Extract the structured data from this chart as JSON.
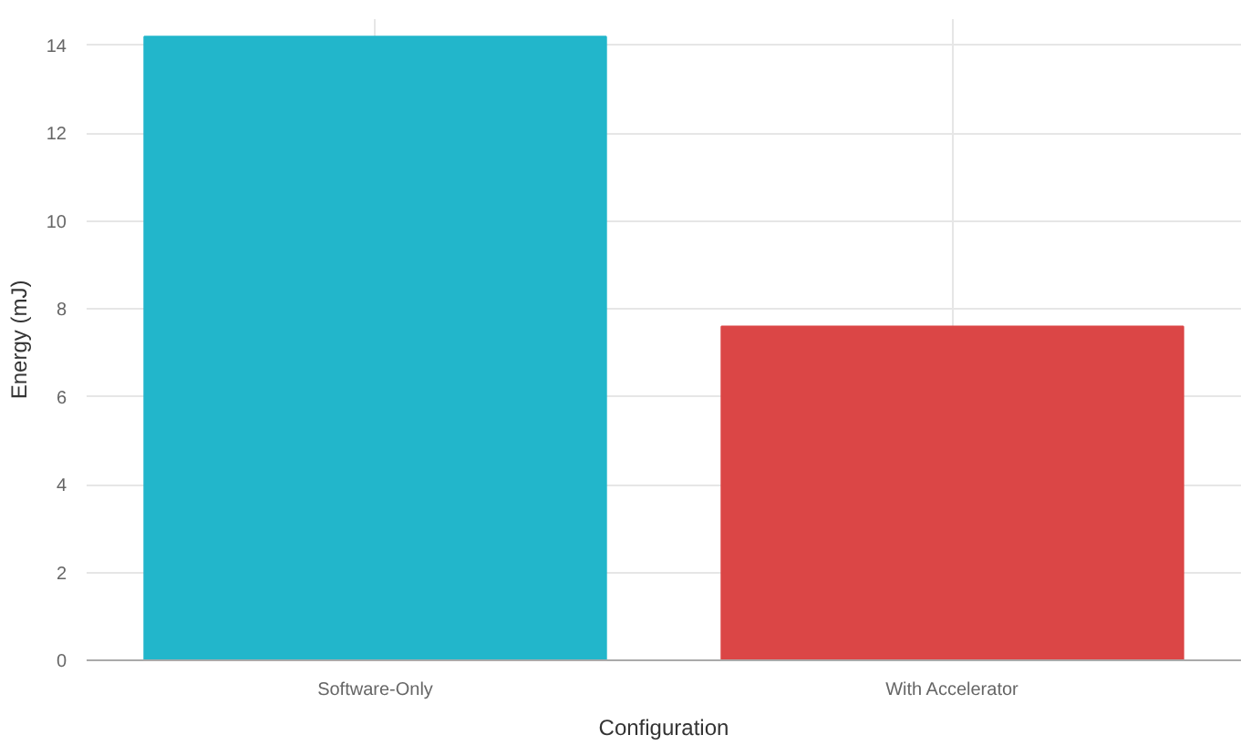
{
  "chart_data": {
    "type": "bar",
    "xlabel": "Configuration",
    "ylabel": "Energy (mJ)",
    "categories": [
      "Software-Only",
      "With Accelerator"
    ],
    "values": [
      14.2,
      7.6
    ],
    "colors": [
      "#22b6cb",
      "#db4646"
    ],
    "ylim": [
      0,
      14.6
    ],
    "yticks": [
      0,
      2,
      4,
      6,
      8,
      10,
      12,
      14
    ],
    "grid": true
  }
}
